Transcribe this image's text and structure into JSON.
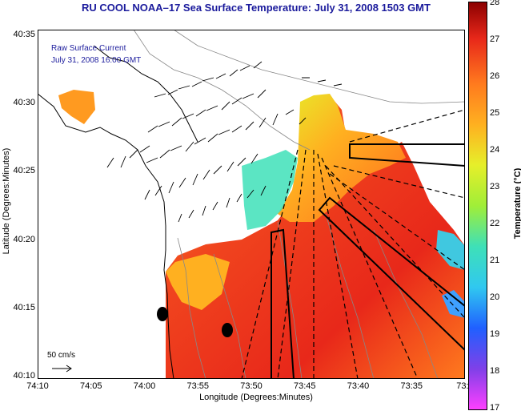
{
  "title": "RU COOL  NOAA–17  Sea Surface Temperature:  July 31, 2008 1503 GMT",
  "legend": {
    "line1": "Raw Surface Current",
    "line2": "July 31, 2008 16:00 GMT",
    "scale_label": "50 cm/s"
  },
  "axes": {
    "xlabel": "Longitude (Degrees:Minutes)",
    "ylabel": "Latitude (Degrees:Minutes)",
    "xticks": [
      "74:10",
      "74:05",
      "74:00",
      "73:55",
      "73:50",
      "73:45",
      "73:40",
      "73:35",
      "73:3"
    ],
    "yticks": [
      "40:35",
      "40:30",
      "40:25",
      "40:20",
      "40:15",
      "40:10"
    ]
  },
  "colorbar": {
    "label": "Temperature (°C)",
    "ticks": [
      "28",
      "27",
      "26",
      "25",
      "24",
      "23",
      "22",
      "21",
      "20",
      "19",
      "18",
      "17"
    ],
    "min": 17,
    "max": 28
  },
  "colors": {
    "title": "#1a1a9c",
    "land": "#ffffff",
    "warm": "#e8281a",
    "cool": "#2fd0c8"
  }
}
